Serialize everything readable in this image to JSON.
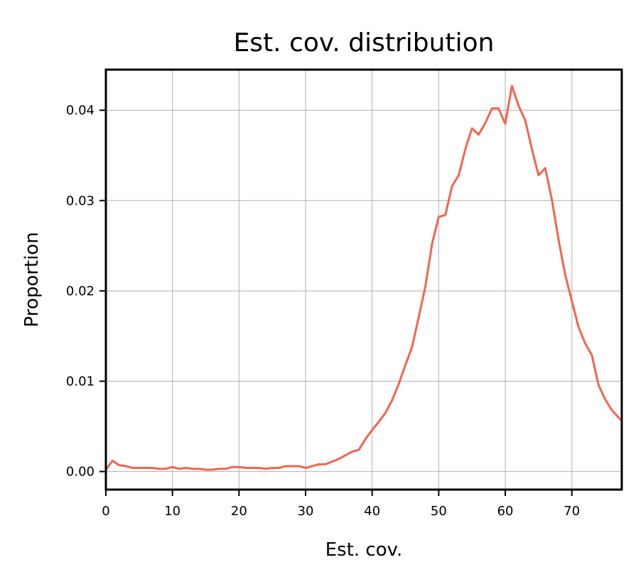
{
  "chart_data": {
    "type": "line",
    "title": "Est. cov. distribution",
    "xlabel": "Est. cov.",
    "ylabel": "Proportion",
    "xlim": [
      0,
      77.5
    ],
    "ylim": [
      -0.002,
      0.0445
    ],
    "xticks": [
      0,
      10,
      20,
      30,
      40,
      50,
      60,
      70
    ],
    "xtick_labels": [
      "0",
      "10",
      "20",
      "30",
      "40",
      "50",
      "60",
      "70"
    ],
    "yticks": [
      0.0,
      0.01,
      0.02,
      0.03,
      0.04
    ],
    "ytick_labels": [
      "0.00",
      "0.01",
      "0.02",
      "0.03",
      "0.04"
    ],
    "grid": true,
    "legend": false,
    "line_color": "#f46450",
    "series": [
      {
        "x": [
          0,
          1,
          2,
          3,
          4,
          5,
          6,
          7,
          8,
          9,
          10,
          11,
          12,
          13,
          14,
          15,
          16,
          17,
          18,
          19,
          20,
          21,
          22,
          23,
          24,
          25,
          26,
          27,
          28,
          29,
          30,
          31,
          32,
          33,
          34,
          35,
          36,
          37,
          38,
          39,
          40,
          41,
          42,
          43,
          44,
          45,
          46,
          47,
          48,
          49,
          50,
          51,
          52,
          53,
          54,
          55,
          56,
          57,
          58,
          59,
          60,
          61,
          62,
          63,
          64,
          65,
          66,
          67,
          68,
          69,
          70,
          71,
          72,
          73,
          74,
          75,
          76,
          77,
          77.5
        ],
        "values": [
          0.0002,
          0.0012,
          0.0007,
          0.0006,
          0.0004,
          0.0004,
          0.0004,
          0.0004,
          0.0003,
          0.0003,
          0.0005,
          0.0003,
          0.0004,
          0.0003,
          0.0003,
          0.0002,
          0.0002,
          0.0003,
          0.0003,
          0.0005,
          0.0005,
          0.0004,
          0.0004,
          0.0004,
          0.0003,
          0.0004,
          0.0004,
          0.0006,
          0.0006,
          0.0006,
          0.0004,
          0.0006,
          0.0008,
          0.0008,
          0.0011,
          0.0014,
          0.0018,
          0.0022,
          0.0024,
          0.0036,
          0.0046,
          0.0055,
          0.0065,
          0.0079,
          0.0097,
          0.0118,
          0.0138,
          0.0171,
          0.0205,
          0.0252,
          0.0282,
          0.0284,
          0.0316,
          0.0328,
          0.0357,
          0.038,
          0.0373,
          0.0386,
          0.0402,
          0.0402,
          0.0385,
          0.0427,
          0.0405,
          0.0389,
          0.0357,
          0.0328,
          0.0336,
          0.0301,
          0.0257,
          0.0218,
          0.0189,
          0.016,
          0.0142,
          0.0129,
          0.0096,
          0.008,
          0.0068,
          0.006,
          0.0056
        ]
      }
    ]
  }
}
